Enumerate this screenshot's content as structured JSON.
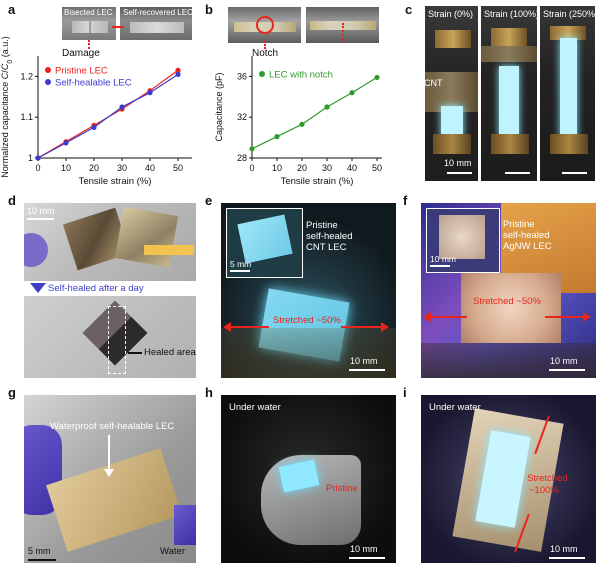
{
  "panels": {
    "a": {
      "label": "a",
      "photo_left": "Bisected LEC",
      "photo_right": "Self-recovered LEC",
      "damage_label": "Damage"
    },
    "b": {
      "label": "b",
      "notch_label": "Notch"
    },
    "c": {
      "label": "c",
      "strain_labels": [
        "Strain (0%)",
        "Strain (100%)",
        "Strain (250%)"
      ],
      "cnt_label": "CNT",
      "scale": "10 mm"
    },
    "d": {
      "label": "d",
      "scale": "10 mm",
      "arrow_text": "Self-healed after a day",
      "healed_label": "Healed area"
    },
    "e": {
      "label": "e",
      "inset_caption_1": "Pristine",
      "inset_caption_2": "self-healed",
      "inset_caption_3": "CNT LEC",
      "inset_scale": "5 mm",
      "stretch": "Stretched ~50%",
      "scale": "10 mm"
    },
    "f": {
      "label": "f",
      "inset_caption_1": "Pristine",
      "inset_caption_2": "self-healed",
      "inset_caption_3": "AgNW LEC",
      "inset_scale": "10 mm",
      "stretch": "Stretched ~50%",
      "scale": "10 mm"
    },
    "g": {
      "label": "g",
      "caption": "Waterproof self-healable LEC",
      "scale": "5 mm",
      "water": "Water"
    },
    "h": {
      "label": "h",
      "under": "Under water",
      "pristine": "Pristine",
      "scale": "10 mm"
    },
    "i": {
      "label": "i",
      "under": "Under water",
      "stretch_1": "Stretched",
      "stretch_2": "~100%",
      "scale": "10 mm"
    }
  },
  "colors": {
    "red": "#e8241c",
    "blue": "#3b3bd0",
    "green": "#2e9a2e"
  },
  "chart_data": [
    {
      "type": "line",
      "title": "",
      "xlabel": "Tensile strain (%)",
      "ylabel": "Normalized capacitance C/C0 (a.u.)",
      "xlim": [
        0,
        55
      ],
      "ylim": [
        1.0,
        1.25
      ],
      "xticks": [
        "0",
        "10",
        "20",
        "30",
        "40",
        "50"
      ],
      "yticks": [
        "1",
        "1.1",
        "1.2"
      ],
      "legend_position": "top-left",
      "x": [
        0,
        10,
        20,
        30,
        40,
        50
      ],
      "series": [
        {
          "name": "Pristine LEC",
          "color": "#e8241c",
          "values": [
            1.0,
            1.04,
            1.08,
            1.12,
            1.165,
            1.215
          ]
        },
        {
          "name": "Self-healable LEC",
          "color": "#3b3bd0",
          "values": [
            1.0,
            1.037,
            1.075,
            1.125,
            1.16,
            1.205
          ]
        }
      ]
    },
    {
      "type": "line",
      "title": "",
      "xlabel": "Tensile strain (%)",
      "ylabel": "Capacitance (pF)",
      "xlim": [
        0,
        52
      ],
      "ylim": [
        28,
        38
      ],
      "xticks": [
        "0",
        "10",
        "20",
        "30",
        "40",
        "50"
      ],
      "yticks": [
        "28",
        "32",
        "36"
      ],
      "legend_position": "top-left",
      "x": [
        0,
        10,
        20,
        30,
        40,
        50
      ],
      "series": [
        {
          "name": "LEC with notch",
          "color": "#2e9a2e",
          "values": [
            28.9,
            30.1,
            31.3,
            33.0,
            34.4,
            35.9
          ]
        }
      ]
    }
  ]
}
